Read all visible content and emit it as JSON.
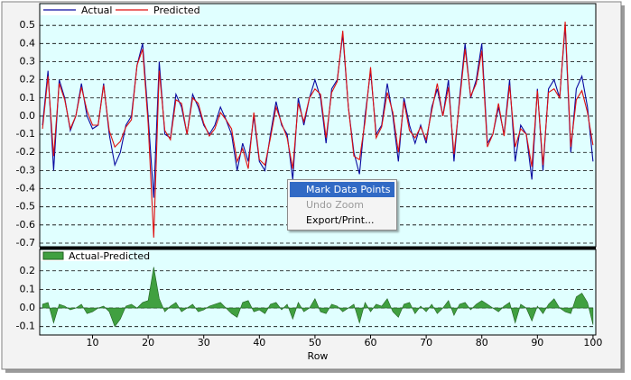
{
  "chart_data": [
    {
      "type": "line",
      "x": [
        1,
        2,
        3,
        4,
        5,
        6,
        7,
        8,
        9,
        10,
        11,
        12,
        13,
        14,
        15,
        16,
        17,
        18,
        19,
        20,
        21,
        22,
        23,
        24,
        25,
        26,
        27,
        28,
        29,
        30,
        31,
        32,
        33,
        34,
        35,
        36,
        37,
        38,
        39,
        40,
        41,
        42,
        43,
        44,
        45,
        46,
        47,
        48,
        49,
        50,
        51,
        52,
        53,
        54,
        55,
        56,
        57,
        58,
        59,
        60,
        61,
        62,
        63,
        64,
        65,
        66,
        67,
        68,
        69,
        70,
        71,
        72,
        73,
        74,
        75,
        76,
        77,
        78,
        79,
        80,
        81,
        82,
        83,
        84,
        85,
        86,
        87,
        88,
        89,
        90,
        91,
        92,
        93,
        94,
        95,
        96,
        97,
        98,
        99,
        100
      ],
      "series": [
        {
          "name": "Actual",
          "color": "#0a0aa0",
          "values": [
            -0.05,
            0.25,
            -0.3,
            0.2,
            0.1,
            -0.08,
            0.0,
            0.18,
            0.0,
            -0.07,
            -0.05,
            0.18,
            -0.1,
            -0.27,
            -0.2,
            -0.05,
            0.0,
            0.28,
            0.4,
            0.0,
            -0.45,
            0.3,
            -0.1,
            -0.12,
            0.12,
            0.05,
            -0.1,
            0.12,
            0.05,
            -0.05,
            -0.1,
            -0.05,
            0.05,
            -0.02,
            -0.1,
            -0.3,
            -0.15,
            -0.25,
            0.0,
            -0.25,
            -0.3,
            -0.1,
            0.08,
            -0.05,
            -0.1,
            -0.35,
            0.1,
            -0.05,
            0.1,
            0.2,
            0.1,
            -0.15,
            0.15,
            0.2,
            0.45,
            0.05,
            -0.2,
            -0.32,
            0.0,
            0.25,
            -0.1,
            -0.05,
            0.18,
            0.0,
            -0.25,
            0.1,
            -0.05,
            -0.15,
            -0.05,
            -0.15,
            0.05,
            0.15,
            0.0,
            0.2,
            -0.25,
            0.1,
            0.4,
            0.1,
            0.2,
            0.4,
            -0.15,
            -0.1,
            0.05,
            -0.1,
            0.2,
            -0.25,
            -0.05,
            -0.1,
            -0.35,
            0.15,
            -0.3,
            0.15,
            0.2,
            0.1,
            0.5,
            -0.2,
            0.15,
            0.22,
            0.05,
            -0.25
          ]
        },
        {
          "name": "Predicted",
          "color": "#e01010",
          "values": [
            -0.07,
            0.22,
            -0.22,
            0.18,
            0.09,
            -0.07,
            0.0,
            0.16,
            0.03,
            -0.05,
            -0.05,
            0.17,
            -0.08,
            -0.17,
            -0.14,
            -0.06,
            -0.02,
            0.28,
            0.37,
            -0.04,
            -0.67,
            0.25,
            -0.08,
            -0.13,
            0.09,
            0.07,
            -0.1,
            0.1,
            0.07,
            -0.04,
            -0.11,
            -0.07,
            0.02,
            -0.02,
            -0.07,
            -0.25,
            -0.18,
            -0.29,
            0.02,
            -0.24,
            -0.27,
            -0.12,
            0.05,
            -0.04,
            -0.12,
            -0.29,
            0.07,
            -0.03,
            0.1,
            0.15,
            0.12,
            -0.12,
            0.13,
            0.19,
            0.47,
            0.05,
            -0.22,
            -0.24,
            -0.03,
            0.27,
            -0.12,
            -0.06,
            0.13,
            0.02,
            -0.2,
            0.08,
            -0.08,
            -0.12,
            -0.06,
            -0.13,
            0.03,
            0.18,
            0.0,
            0.16,
            -0.21,
            0.08,
            0.37,
            0.11,
            0.18,
            0.36,
            -0.17,
            -0.1,
            0.07,
            -0.11,
            0.17,
            -0.17,
            -0.07,
            -0.1,
            -0.28,
            0.14,
            -0.27,
            0.13,
            0.15,
            0.1,
            0.52,
            -0.17,
            0.09,
            0.14,
            0.02,
            -0.16
          ]
        }
      ],
      "xlim": [
        0.5,
        100.5
      ],
      "ylim": [
        -0.72,
        0.62
      ],
      "yticks": [
        0.5,
        0.4,
        0.3,
        0.2,
        0.1,
        {
          "value": 0,
          "label": "0.0"
        },
        -0.1,
        -0.2,
        -0.3,
        -0.4,
        -0.5,
        -0.6,
        -0.7
      ],
      "grid": true
    },
    {
      "type": "area",
      "x": [
        1,
        2,
        3,
        4,
        5,
        6,
        7,
        8,
        9,
        10,
        11,
        12,
        13,
        14,
        15,
        16,
        17,
        18,
        19,
        20,
        21,
        22,
        23,
        24,
        25,
        26,
        27,
        28,
        29,
        30,
        31,
        32,
        33,
        34,
        35,
        36,
        37,
        38,
        39,
        40,
        41,
        42,
        43,
        44,
        45,
        46,
        47,
        48,
        49,
        50,
        51,
        52,
        53,
        54,
        55,
        56,
        57,
        58,
        59,
        60,
        61,
        62,
        63,
        64,
        65,
        66,
        67,
        68,
        69,
        70,
        71,
        72,
        73,
        74,
        75,
        76,
        77,
        78,
        79,
        80,
        81,
        82,
        83,
        84,
        85,
        86,
        87,
        88,
        89,
        90,
        91,
        92,
        93,
        94,
        95,
        96,
        97,
        98,
        99,
        100
      ],
      "series": [
        {
          "name": "Actual-Predicted",
          "color": "#40a040",
          "values": [
            0.02,
            0.03,
            -0.08,
            0.02,
            0.01,
            -0.01,
            0.0,
            0.02,
            -0.03,
            -0.02,
            0.0,
            0.01,
            -0.02,
            -0.1,
            -0.06,
            0.01,
            0.02,
            0.0,
            0.03,
            0.04,
            0.22,
            0.05,
            -0.02,
            0.01,
            0.03,
            -0.02,
            0.0,
            0.02,
            -0.02,
            -0.01,
            0.01,
            0.02,
            0.03,
            0.0,
            -0.03,
            -0.05,
            0.03,
            0.04,
            -0.02,
            -0.01,
            -0.03,
            0.02,
            0.03,
            -0.01,
            0.02,
            -0.06,
            0.03,
            -0.02,
            0.0,
            0.05,
            -0.02,
            -0.03,
            0.02,
            0.01,
            -0.02,
            0.0,
            0.02,
            -0.08,
            0.03,
            -0.02,
            0.02,
            0.01,
            0.05,
            -0.02,
            -0.05,
            0.02,
            0.03,
            -0.03,
            0.01,
            -0.02,
            0.02,
            -0.03,
            0.0,
            0.04,
            -0.04,
            0.02,
            0.03,
            -0.01,
            0.02,
            0.04,
            0.02,
            0.0,
            -0.02,
            0.01,
            0.03,
            -0.08,
            0.02,
            0.0,
            -0.07,
            0.01,
            -0.03,
            0.02,
            0.05,
            0.0,
            -0.02,
            -0.03,
            0.06,
            0.08,
            0.03,
            -0.09
          ]
        }
      ],
      "xlim": [
        0.5,
        100.5
      ],
      "ylim": [
        -0.145,
        0.315
      ],
      "yticks": [
        0.2,
        0.1,
        {
          "value": 0,
          "label": "0.0"
        },
        -0.1
      ],
      "xticks": [
        10,
        20,
        30,
        40,
        50,
        60,
        70,
        80,
        90,
        100
      ],
      "xlabel": "Row",
      "grid": true
    }
  ],
  "context_menu": {
    "items": [
      "Mark Data Points",
      "Undo Zoom",
      "Export/Print..."
    ],
    "highlighted": 0,
    "disabled": [
      1
    ]
  }
}
